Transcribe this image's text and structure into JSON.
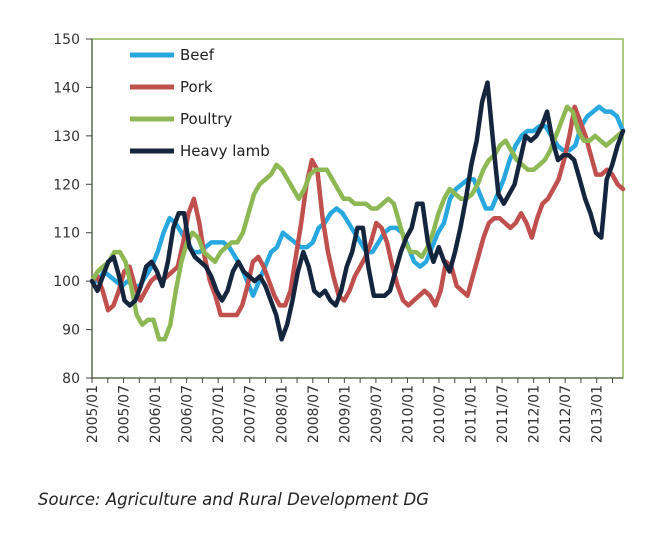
{
  "chart_data": {
    "type": "line",
    "title": "",
    "xlabel": "",
    "ylabel": "",
    "ylim": [
      80,
      150
    ],
    "yticks": [
      80,
      90,
      100,
      110,
      120,
      130,
      140,
      150
    ],
    "x_tick_labels": [
      "2005/01",
      "2005/07",
      "2006/01",
      "2006/07",
      "2007/01",
      "2007/07",
      "2008/01",
      "2008/07",
      "2009/01",
      "2009/07",
      "2010/01",
      "2010/07",
      "2011/01",
      "2011/07",
      "2012/01",
      "2012/07",
      "2013/01"
    ],
    "x_start": "2005/01",
    "x_end": "2013/06",
    "grid": false,
    "legend_position": "top-left",
    "series": [
      {
        "name": "Beef",
        "color": "#29a8e0",
        "values": [
          100,
          100,
          102,
          101,
          100,
          99,
          100,
          99,
          99,
          101,
          103,
          106,
          110,
          113,
          112,
          110,
          108,
          106,
          106,
          107,
          108,
          108,
          108,
          107,
          105,
          103,
          100,
          97,
          100,
          103,
          106,
          107,
          110,
          109,
          108,
          107,
          107,
          108,
          111,
          112,
          114,
          115,
          114,
          112,
          110,
          108,
          106,
          106,
          108,
          110,
          111,
          111,
          110,
          107,
          104,
          103,
          104,
          107,
          110,
          112,
          117,
          119,
          120,
          121,
          121,
          118,
          115,
          115,
          118,
          121,
          125,
          128,
          130,
          131,
          131,
          132,
          132,
          130,
          128,
          127,
          127,
          128,
          132,
          134,
          135,
          136,
          135,
          135,
          134,
          131
        ]
      },
      {
        "name": "Pork",
        "color": "#c0504d",
        "values": [
          100,
          101,
          98,
          94,
          95,
          98,
          102,
          103,
          99,
          96,
          98,
          100,
          101,
          100,
          101,
          102,
          103,
          108,
          114,
          117,
          112,
          105,
          100,
          97,
          93,
          93,
          93,
          93,
          95,
          99,
          104,
          105,
          103,
          100,
          97,
          95,
          95,
          98,
          105,
          112,
          120,
          125,
          123,
          113,
          106,
          101,
          97,
          96,
          98,
          101,
          103,
          105,
          108,
          112,
          111,
          108,
          103,
          99,
          96,
          95,
          96,
          97,
          98,
          97,
          95,
          98,
          104,
          103,
          99,
          98,
          97,
          101,
          105,
          109,
          112,
          113,
          113,
          112,
          111,
          112,
          114,
          112,
          109,
          113,
          116,
          117,
          119,
          121,
          125,
          130,
          136,
          133,
          130,
          126,
          122,
          122,
          123,
          122,
          120,
          119
        ]
      },
      {
        "name": "Poultry",
        "color": "#8db854",
        "values": [
          100,
          102,
          103,
          104,
          106,
          106,
          104,
          99,
          93,
          91,
          92,
          92,
          88,
          88,
          91,
          98,
          104,
          108,
          110,
          109,
          106,
          105,
          104,
          106,
          107,
          108,
          108,
          110,
          114,
          118,
          120,
          121,
          122,
          124,
          123,
          121,
          119,
          117,
          119,
          122,
          123,
          123,
          123,
          121,
          119,
          117,
          117,
          116,
          116,
          116,
          115,
          115,
          116,
          117,
          116,
          112,
          108,
          106,
          106,
          105,
          107,
          110,
          114,
          117,
          119,
          118,
          117,
          117,
          118,
          120,
          123,
          125,
          126,
          128,
          129,
          127,
          125,
          124,
          123,
          123,
          124,
          125,
          127,
          130,
          133,
          136,
          135,
          131,
          129,
          129,
          130,
          129,
          128,
          129,
          130,
          131
        ]
      },
      {
        "name": "Heavy lamb",
        "color": "#14253d",
        "values": [
          100,
          98,
          101,
          104,
          105,
          101,
          96,
          95,
          96,
          99,
          103,
          104,
          102,
          99,
          104,
          111,
          114,
          114,
          107,
          105,
          104,
          103,
          101,
          98,
          96,
          98,
          102,
          104,
          102,
          101,
          100,
          101,
          99,
          96,
          93,
          88,
          91,
          96,
          102,
          106,
          103,
          98,
          97,
          98,
          96,
          95,
          98,
          103,
          106,
          111,
          111,
          103,
          97,
          97,
          97,
          98,
          102,
          106,
          109,
          111,
          116,
          116,
          108,
          104,
          107,
          104,
          102,
          106,
          111,
          117,
          124,
          129,
          137,
          141,
          129,
          118,
          116,
          118,
          120,
          125,
          130,
          129,
          130,
          132,
          135,
          129,
          125,
          126,
          126,
          125,
          121,
          117,
          114,
          110,
          109,
          121,
          124,
          128,
          131
        ]
      }
    ]
  },
  "legend": {
    "items": [
      {
        "label": "Beef",
        "color": "#29a8e0"
      },
      {
        "label": "Pork",
        "color": "#c0504d"
      },
      {
        "label": "Poultry",
        "color": "#8db854"
      },
      {
        "label": "Heavy lamb",
        "color": "#14253d"
      }
    ]
  },
  "source": "Source: Agriculture and Rural Development DG",
  "colors": {
    "frame": "#8db854",
    "axis": "#333333"
  }
}
